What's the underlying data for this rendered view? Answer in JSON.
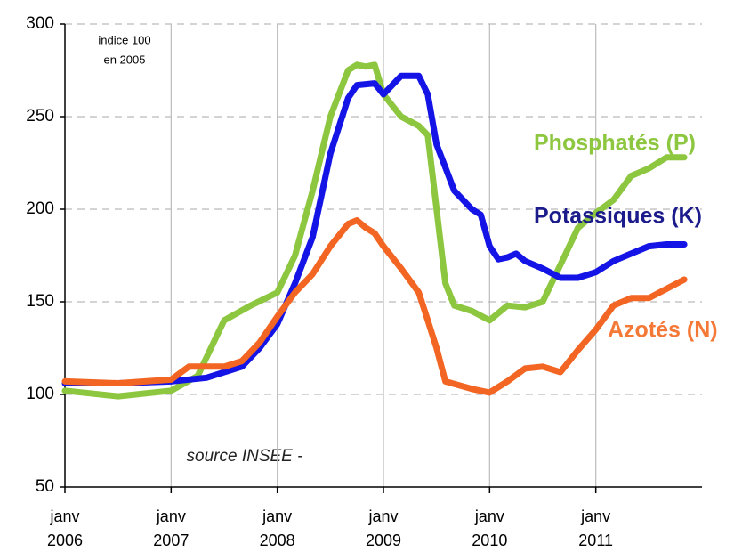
{
  "chart_data": {
    "type": "line",
    "annotations": [
      "indice 100",
      "en 2005"
    ],
    "source": "source INSEE -",
    "xlim": [
      2006,
      2012
    ],
    "xticks": [
      {
        "value": 2006,
        "label": "janv 2006"
      },
      {
        "value": 2007,
        "label": "janv 2007"
      },
      {
        "value": 2008,
        "label": "janv 2008"
      },
      {
        "value": 2009,
        "label": "janv 2009"
      },
      {
        "value": 2010,
        "label": "janv 2010"
      },
      {
        "value": 2011,
        "label": "janv 2011"
      }
    ],
    "ylim": [
      50,
      300
    ],
    "yticks": [
      50,
      100,
      150,
      200,
      250,
      300
    ],
    "grid": true,
    "series": [
      {
        "name": "Phosphatés (P)",
        "color": "#8dc63f",
        "label_color": "#8dc63f",
        "x": [
          2006,
          2006.5,
          2007,
          2007.25,
          2007.5,
          2007.75,
          2008,
          2008.167,
          2008.333,
          2008.5,
          2008.667,
          2008.75,
          2008.833,
          2008.917,
          2009,
          2009.167,
          2009.333,
          2009.417,
          2009.5,
          2009.583,
          2009.667,
          2009.833,
          2010,
          2010.167,
          2010.333,
          2010.5,
          2010.667,
          2010.833,
          2011,
          2011.167,
          2011.333,
          2011.5,
          2011.667,
          2011.833
        ],
        "values": [
          102,
          99,
          102,
          110,
          140,
          148,
          155,
          175,
          210,
          250,
          275,
          278,
          277,
          278,
          262,
          250,
          245,
          240,
          200,
          160,
          148,
          145,
          140,
          148,
          147,
          150,
          170,
          190,
          198,
          205,
          218,
          222,
          228,
          228
        ]
      },
      {
        "name": "Potassiques (K)",
        "color": "#1414e6",
        "label_color": "#1b1b8c",
        "x": [
          2006,
          2006.5,
          2007,
          2007.333,
          2007.667,
          2007.833,
          2008,
          2008.167,
          2008.333,
          2008.5,
          2008.667,
          2008.75,
          2008.917,
          2009,
          2009.167,
          2009.333,
          2009.417,
          2009.5,
          2009.667,
          2009.833,
          2009.917,
          2010,
          2010.083,
          2010.167,
          2010.25,
          2010.333,
          2010.5,
          2010.667,
          2010.833,
          2011,
          2011.167,
          2011.333,
          2011.5,
          2011.667,
          2011.833
        ],
        "values": [
          106,
          106,
          107,
          109,
          115,
          125,
          138,
          160,
          185,
          230,
          260,
          267,
          268,
          262,
          272,
          272,
          262,
          235,
          210,
          200,
          197,
          180,
          173,
          174,
          176,
          172,
          168,
          163,
          163,
          166,
          172,
          176,
          180,
          181,
          181
        ]
      },
      {
        "name": "Azotés (N)",
        "color": "#f26522",
        "label_color": "#f47836",
        "x": [
          2006,
          2006.5,
          2007,
          2007.167,
          2007.333,
          2007.5,
          2007.667,
          2007.833,
          2008,
          2008.167,
          2008.333,
          2008.5,
          2008.667,
          2008.75,
          2008.833,
          2008.917,
          2009,
          2009.167,
          2009.333,
          2009.417,
          2009.5,
          2009.583,
          2009.833,
          2010,
          2010.167,
          2010.333,
          2010.5,
          2010.667,
          2010.833,
          2011,
          2011.167,
          2011.333,
          2011.5,
          2011.667,
          2011.833
        ],
        "values": [
          107,
          106,
          108,
          115,
          115,
          115,
          118,
          128,
          142,
          155,
          165,
          180,
          192,
          194,
          190,
          187,
          180,
          168,
          155,
          140,
          125,
          107,
          103,
          101,
          107,
          114,
          115,
          112,
          124,
          135,
          148,
          152,
          152,
          157,
          162
        ]
      }
    ]
  }
}
